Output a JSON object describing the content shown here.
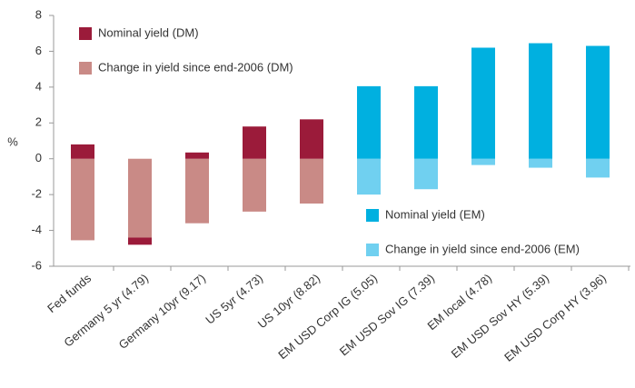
{
  "chart_data": {
    "type": "bar",
    "y_label": "%",
    "categories": [
      "Fed funds",
      "Germany 5 yr (4.79)",
      "Germany 10yr (9.17)",
      "US 5yr (4.73)",
      "US 10yr (8.82)",
      "EM USD Corp IG (5.05)",
      "EM USD Sov IG (7.39)",
      "EM local (4.78)",
      "EM USD Sov HY (5.39)",
      "EM USD Corp HY (3.96)"
    ],
    "series": [
      {
        "name": "Nominal yield (DM)",
        "color": "#9b1b3a",
        "values": [
          0.8,
          -0.4,
          0.35,
          1.8,
          2.2,
          null,
          null,
          null,
          null,
          null
        ]
      },
      {
        "name": "Change in yield since end-2006 (DM)",
        "color": "#c98a86",
        "values": [
          -4.55,
          -4.4,
          -3.6,
          -2.95,
          -2.5,
          null,
          null,
          null,
          null,
          null
        ]
      },
      {
        "name": "Nominal yield (EM)",
        "color": "#00b0e0",
        "values": [
          null,
          null,
          null,
          null,
          null,
          4.05,
          4.05,
          6.2,
          6.45,
          6.3
        ]
      },
      {
        "name": "Change in yield since end-2006 (EM)",
        "color": "#70d0f0",
        "values": [
          null,
          null,
          null,
          null,
          null,
          -2.0,
          -1.7,
          -0.35,
          -0.5,
          -1.05
        ]
      }
    ],
    "stacked": true,
    "ylim": [
      -6,
      8
    ],
    "yticks": [
      -6,
      -4,
      -2,
      0,
      2,
      4,
      6,
      8
    ]
  }
}
